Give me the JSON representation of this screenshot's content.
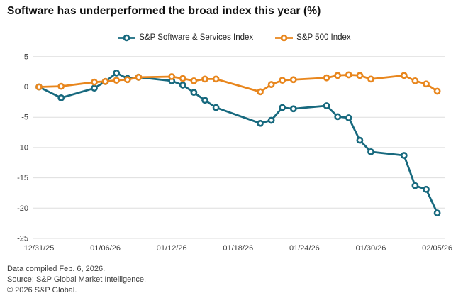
{
  "header": {
    "title": "Software has underperformed the broad index this year (%)"
  },
  "chart_data": {
    "type": "line",
    "x_axis_type": "date",
    "x": [
      "12/31/25",
      "01/02/26",
      "01/05/26",
      "01/06/26",
      "01/07/26",
      "01/08/26",
      "01/09/26",
      "01/12/26",
      "01/13/26",
      "01/14/26",
      "01/15/26",
      "01/16/26",
      "01/20/26",
      "01/21/26",
      "01/22/26",
      "01/23/26",
      "01/26/26",
      "01/27/26",
      "01/28/26",
      "01/29/26",
      "01/30/26",
      "02/02/26",
      "02/03/26",
      "02/04/26",
      "02/05/26"
    ],
    "series": [
      {
        "name": "S&P Software & Services Index",
        "color": "#17697e",
        "values": [
          0.0,
          -1.8,
          -0.2,
          0.9,
          2.3,
          1.4,
          1.6,
          1.0,
          0.3,
          -0.9,
          -2.2,
          -3.4,
          -6.0,
          -5.5,
          -3.4,
          -3.6,
          -3.1,
          -4.9,
          -5.1,
          -8.8,
          -10.7,
          -11.3,
          -16.3,
          -16.9,
          -20.8
        ]
      },
      {
        "name": "S&P 500 Index",
        "color": "#e8861d",
        "values": [
          0.0,
          0.1,
          0.8,
          0.9,
          1.1,
          1.2,
          1.6,
          1.7,
          1.4,
          1.0,
          1.3,
          1.3,
          -0.8,
          0.4,
          1.1,
          1.2,
          1.5,
          1.9,
          2.0,
          1.9,
          1.3,
          1.9,
          1.0,
          0.5,
          -0.7
        ]
      }
    ],
    "yticks": [
      5,
      0,
      -5,
      -10,
      -15,
      -20,
      -25
    ],
    "xticks": [
      "12/31/25",
      "01/06/26",
      "01/12/26",
      "01/18/26",
      "01/24/26",
      "01/30/26",
      "02/05/26"
    ],
    "ylim": [
      -25,
      5
    ],
    "grid": "horizontal",
    "zero_line": true,
    "legend_position": "top-center",
    "colors": {
      "gridline": "#dedede",
      "zero_line": "#a3a3a3",
      "tick_text": "#3f3f3f"
    }
  },
  "footer": {
    "line1": "Data compiled Feb. 6, 2026.",
    "line2": "Source: S&P Global Market Intelligence.",
    "line3": "© 2026 S&P Global."
  }
}
